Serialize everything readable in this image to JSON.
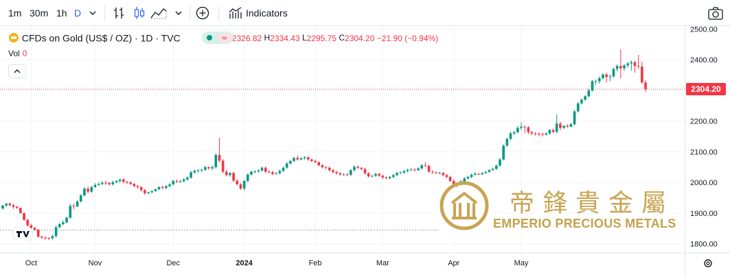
{
  "toolbar": {
    "intervals": [
      "1m",
      "30m",
      "1h",
      "D"
    ],
    "active_interval": "D",
    "indicators_label": "Indicators"
  },
  "legend": {
    "symbol": "CFDs on Gold (US$ / OZ) · 1D · TVC",
    "o_label": "O",
    "o": "2326.82",
    "h_label": "H",
    "h": "2334.43",
    "l_label": "L",
    "l": "2295.75",
    "c_label": "C",
    "c": "2304.20",
    "change": "−21.90 (−0.94%)",
    "vol_label": "Vol",
    "vol_value": "0"
  },
  "watermark": {
    "english": "EMPERIO PRECIOUS METALS",
    "chinese": "帝鋒貴金屬"
  },
  "colors": {
    "up": "#089981",
    "down": "#f23645",
    "gold": "#c8a553"
  },
  "chart_data": {
    "type": "candlestick",
    "title": "",
    "ylim": [
      1770,
      2510
    ],
    "y_ticks": [
      "2500.00",
      "2400.00",
      "2300.00",
      "2200.00",
      "2100.00",
      "2000.00",
      "1900.00",
      "1800.00"
    ],
    "x_ticks": [
      "Oct",
      "Nov",
      "Dec",
      "2024",
      "Feb",
      "Mar",
      "Apr",
      "May"
    ],
    "last_price": "2304.20",
    "grid": true,
    "series": [
      {
        "open": [
          1915,
          1925,
          1931,
          1926,
          1921,
          1917,
          1900,
          1878,
          1860,
          1852,
          1846,
          1823,
          1820,
          1819,
          1818,
          1825,
          1854,
          1864,
          1870,
          1885,
          1924,
          1922,
          1938,
          1958,
          1980,
          1970,
          1985,
          1992,
          1995,
          1999,
          1998,
          1994,
          2001,
          2005,
          2010,
          2002,
          2000,
          1995,
          1988,
          1985,
          1975,
          1965,
          1968,
          1972,
          1978,
          1985,
          1982,
          1988,
          1994,
          2005,
          2003,
          2004,
          2010,
          2016,
          2033,
          2038,
          2040,
          2041,
          2050,
          2046,
          2050,
          2090,
          2071,
          2035,
          2024,
          2031,
          2006,
          1994,
          1980,
          2005,
          2026,
          2035,
          2036,
          2039,
          2048,
          2035,
          2034,
          2028,
          2030,
          2038,
          2048,
          2062,
          2070,
          2080,
          2075,
          2079,
          2082,
          2075,
          2070,
          2066,
          2056,
          2050,
          2048,
          2040,
          2034,
          2030,
          2026,
          2026,
          2025,
          2040,
          2051,
          2048,
          2044,
          2030,
          2020,
          2022,
          2028,
          2022,
          2016,
          2014,
          2018,
          2024,
          2031,
          2032,
          2037,
          2041,
          2042,
          2040,
          2046,
          2056,
          2054,
          2035,
          2033,
          2031,
          2031,
          2024,
          2018,
          2005,
          1994,
          1996,
          2004,
          2013,
          2018,
          2025,
          2028,
          2027,
          2031,
          2034,
          2040,
          2044,
          2055,
          2075,
          2120,
          2142,
          2160,
          2164,
          2178,
          2182,
          2180,
          2164,
          2160,
          2159,
          2158,
          2156,
          2160,
          2171,
          2165,
          2192,
          2178,
          2185,
          2182,
          2190,
          2232,
          2258,
          2270,
          2281,
          2300,
          2330,
          2330,
          2340,
          2352,
          2344,
          2346,
          2370,
          2380,
          2372,
          2382,
          2388,
          2392,
          2380,
          2378,
          2326
        ],
        "high": [
          1926,
          1934,
          1935,
          1931,
          1923,
          1919,
          1903,
          1881,
          1865,
          1855,
          1848,
          1826,
          1824,
          1822,
          1830,
          1860,
          1868,
          1876,
          1888,
          1930,
          1932,
          1942,
          1962,
          1985,
          1988,
          1990,
          1998,
          2000,
          2004,
          2006,
          2002,
          2006,
          2008,
          2012,
          2014,
          2006,
          2004,
          1998,
          1993,
          1988,
          1979,
          1970,
          1974,
          1980,
          1988,
          1990,
          1992,
          1998,
          2008,
          2010,
          2008,
          2014,
          2020,
          2038,
          2042,
          2044,
          2046,
          2055,
          2052,
          2055,
          2095,
          2146,
          2076,
          2042,
          2033,
          2034,
          2010,
          1998,
          2008,
          2030,
          2038,
          2040,
          2043,
          2052,
          2052,
          2040,
          2038,
          2033,
          2042,
          2052,
          2066,
          2074,
          2084,
          2088,
          2082,
          2086,
          2086,
          2078,
          2074,
          2070,
          2060,
          2054,
          2052,
          2044,
          2038,
          2034,
          2030,
          2030,
          2044,
          2056,
          2056,
          2050,
          2048,
          2034,
          2024,
          2032,
          2031,
          2026,
          2020,
          2022,
          2028,
          2035,
          2037,
          2042,
          2045,
          2048,
          2047,
          2050,
          2060,
          2066,
          2058,
          2040,
          2037,
          2035,
          2034,
          2028,
          2022,
          2010,
          2000,
          2008,
          2018,
          2022,
          2030,
          2034,
          2032,
          2033,
          2038,
          2044,
          2048,
          2058,
          2080,
          2125,
          2146,
          2166,
          2168,
          2184,
          2196,
          2185,
          2184,
          2168,
          2164,
          2163,
          2162,
          2163,
          2174,
          2176,
          2222,
          2198,
          2186,
          2190,
          2194,
          2236,
          2262,
          2274,
          2285,
          2305,
          2334,
          2336,
          2346,
          2356,
          2358,
          2352,
          2374,
          2385,
          2434,
          2386,
          2394,
          2398,
          2396,
          2416,
          2394,
          2334
        ],
        "low": [
          1912,
          1920,
          1922,
          1914,
          1914,
          1898,
          1875,
          1856,
          1849,
          1843,
          1820,
          1816,
          1814,
          1812,
          1814,
          1820,
          1850,
          1860,
          1866,
          1882,
          1912,
          1920,
          1935,
          1954,
          1964,
          1966,
          1982,
          1989,
          1992,
          1992,
          1990,
          1990,
          1998,
          1999,
          1998,
          1995,
          1992,
          1984,
          1980,
          1970,
          1960,
          1962,
          1965,
          1970,
          1975,
          1978,
          1978,
          1984,
          1990,
          1998,
          1998,
          2000,
          2005,
          2012,
          2028,
          2032,
          2035,
          2038,
          2042,
          2040,
          2045,
          2066,
          2030,
          2020,
          2018,
          2002,
          1992,
          1976,
          1974,
          2000,
          2022,
          2030,
          2032,
          2036,
          2030,
          2030,
          2024,
          2025,
          2026,
          2034,
          2044,
          2058,
          2066,
          2071,
          2072,
          2075,
          2070,
          2066,
          2063,
          2053,
          2046,
          2043,
          2036,
          2030,
          2025,
          2022,
          2022,
          2020,
          2021,
          2036,
          2044,
          2040,
          2025,
          2016,
          2015,
          2018,
          2018,
          2012,
          2010,
          2010,
          2014,
          2020,
          2028,
          2029,
          2034,
          2038,
          2036,
          2038,
          2042,
          2050,
          2032,
          2028,
          2028,
          2027,
          2020,
          2014,
          2002,
          1990,
          1984,
          1990,
          2000,
          2010,
          2014,
          2022,
          2024,
          2024,
          2028,
          2032,
          2038,
          2042,
          2052,
          2072,
          2116,
          2138,
          2154,
          2160,
          2170,
          2160,
          2158,
          2154,
          2152,
          2150,
          2150,
          2152,
          2156,
          2160,
          2160,
          2170,
          2174,
          2178,
          2180,
          2186,
          2228,
          2254,
          2266,
          2278,
          2296,
          2318,
          2322,
          2336,
          2326,
          2330,
          2342,
          2362,
          2340,
          2364,
          2374,
          2364,
          2358,
          2370,
          2322,
          2296
        ],
        "close": [
          1925,
          1931,
          1926,
          1921,
          1917,
          1900,
          1878,
          1860,
          1852,
          1846,
          1823,
          1820,
          1819,
          1818,
          1825,
          1854,
          1864,
          1870,
          1885,
          1924,
          1922,
          1938,
          1958,
          1980,
          1970,
          1985,
          1992,
          1995,
          1999,
          1998,
          1994,
          2001,
          2005,
          2010,
          2002,
          2000,
          1995,
          1988,
          1985,
          1975,
          1965,
          1968,
          1972,
          1978,
          1985,
          1982,
          1988,
          1994,
          2005,
          2003,
          2004,
          2010,
          2016,
          2033,
          2038,
          2040,
          2041,
          2050,
          2046,
          2050,
          2090,
          2071,
          2035,
          2024,
          2031,
          2006,
          1994,
          1980,
          2005,
          2026,
          2035,
          2036,
          2039,
          2048,
          2035,
          2034,
          2028,
          2030,
          2038,
          2048,
          2062,
          2070,
          2080,
          2075,
          2079,
          2082,
          2075,
          2070,
          2066,
          2056,
          2050,
          2048,
          2040,
          2034,
          2030,
          2026,
          2026,
          2025,
          2040,
          2051,
          2048,
          2044,
          2030,
          2020,
          2022,
          2028,
          2022,
          2016,
          2014,
          2018,
          2024,
          2031,
          2032,
          2037,
          2041,
          2042,
          2040,
          2046,
          2056,
          2054,
          2035,
          2033,
          2031,
          2031,
          2024,
          2018,
          2005,
          1994,
          1996,
          2004,
          2013,
          2018,
          2025,
          2028,
          2027,
          2031,
          2034,
          2040,
          2044,
          2055,
          2075,
          2120,
          2142,
          2160,
          2164,
          2178,
          2182,
          2180,
          2164,
          2160,
          2159,
          2158,
          2156,
          2160,
          2171,
          2165,
          2192,
          2178,
          2185,
          2182,
          2190,
          2232,
          2258,
          2270,
          2281,
          2300,
          2330,
          2330,
          2340,
          2352,
          2344,
          2346,
          2370,
          2380,
          2372,
          2382,
          2388,
          2392,
          2380,
          2378,
          2326,
          2304.2
        ]
      }
    ]
  }
}
